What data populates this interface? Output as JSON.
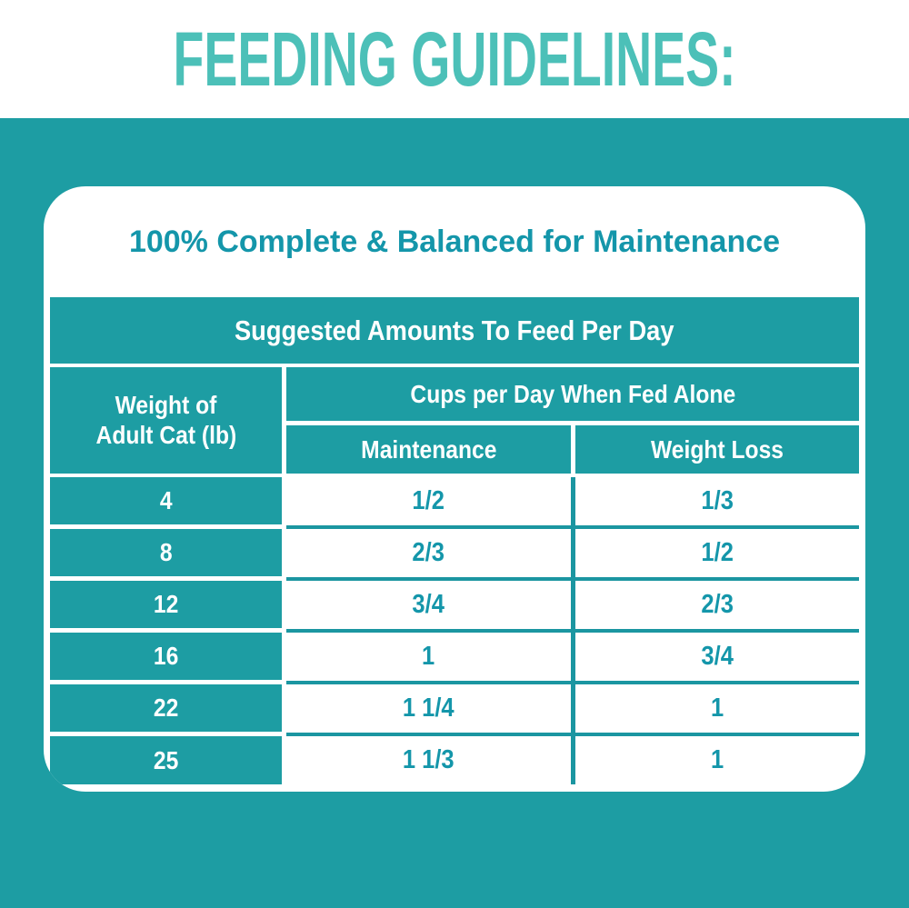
{
  "page": {
    "heading": "FEEDING GUIDELINES:"
  },
  "card": {
    "title": "100% Complete & Balanced for Maintenance",
    "banner": "Suggested Amounts To Feed Per Day",
    "header": {
      "weight_line1": "Weight of",
      "weight_line2": "Adult Cat (lb)",
      "group": "Cups per Day When Fed Alone",
      "maintenance": "Maintenance",
      "weight_loss": "Weight Loss"
    }
  },
  "chart_data": {
    "type": "table",
    "title": "Suggested Amounts To Feed Per Day",
    "subtitle": "100% Complete & Balanced for Maintenance",
    "group_header": "Cups per Day When Fed Alone",
    "columns": [
      "Weight of Adult Cat (lb)",
      "Maintenance",
      "Weight Loss"
    ],
    "rows": [
      [
        "4",
        "1/2",
        "1/3"
      ],
      [
        "8",
        "2/3",
        "1/2"
      ],
      [
        "12",
        "3/4",
        "2/3"
      ],
      [
        "16",
        "1",
        "3/4"
      ],
      [
        "22",
        "1 1/4",
        "1"
      ],
      [
        "25",
        "1 1/3",
        "1"
      ]
    ]
  },
  "colors": {
    "background_teal": "#1D9DA3",
    "heading_teal": "#4CC0B8",
    "title_teal": "#1496AA",
    "value_teal": "#1496AA",
    "line_teal": "#1B96A1",
    "card_white": "#FFFFFF"
  }
}
